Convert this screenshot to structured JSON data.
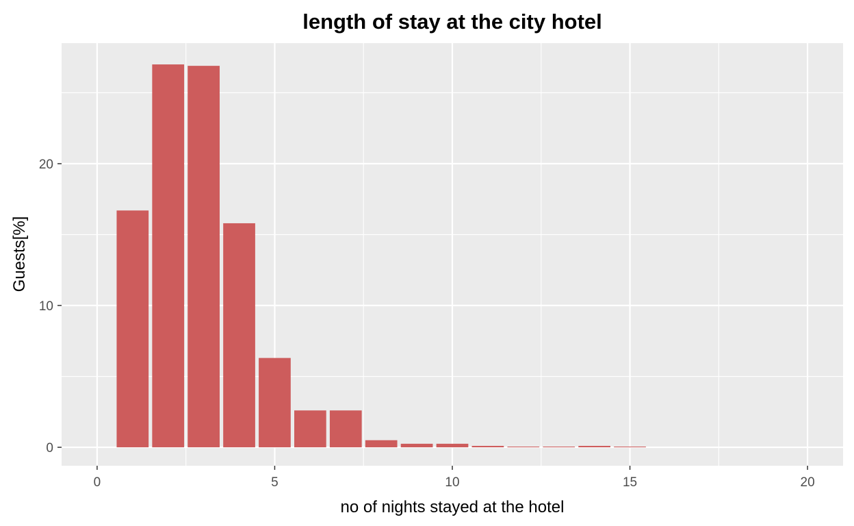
{
  "chart_data": {
    "type": "bar",
    "title": "length of stay at the city hotel",
    "xlabel": "no of nights stayed at the hotel",
    "ylabel": "Guests[%]",
    "x": [
      1,
      2,
      3,
      4,
      5,
      6,
      7,
      8,
      9,
      10,
      11,
      12,
      13,
      14,
      15
    ],
    "values": [
      16.7,
      27.0,
      26.9,
      15.8,
      6.3,
      2.6,
      2.6,
      0.5,
      0.25,
      0.25,
      0.1,
      0.05,
      0.05,
      0.1,
      0.05
    ],
    "xlim": [
      -1,
      21
    ],
    "ylim": [
      -1.3,
      28.5
    ],
    "xticks": [
      0,
      5,
      10,
      15,
      20
    ],
    "xtick_labels": [
      "0",
      "5",
      "10",
      "15",
      "20"
    ],
    "yticks": [
      0,
      10,
      20
    ],
    "ytick_labels": [
      "0",
      "10",
      "20"
    ],
    "grid": true,
    "colors": {
      "bar": "#cd5c5c",
      "panel": "#ebebeb",
      "grid": "#ffffff"
    }
  }
}
